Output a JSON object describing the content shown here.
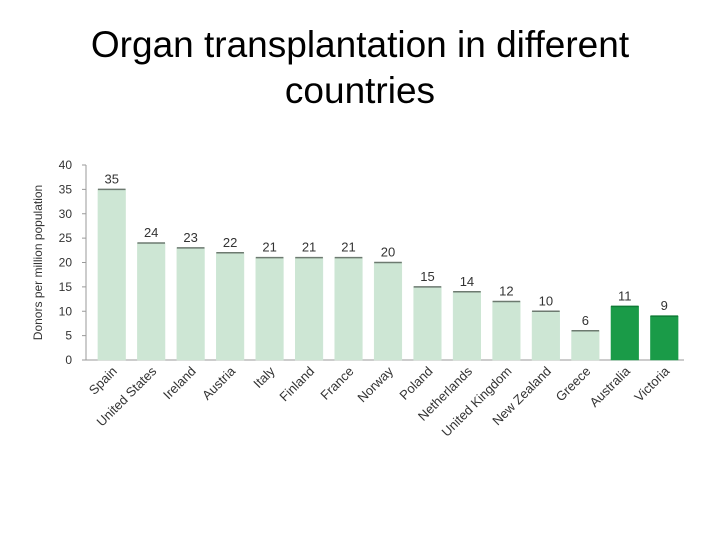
{
  "title_lines": [
    "Organ transplantation in different",
    "countries"
  ],
  "colors": {
    "light_bar": "#cde6d4",
    "dark_bar": "#1a9b48",
    "outline": "#6d7a70",
    "axis": "#9a9a9a"
  },
  "chart_data": {
    "type": "bar",
    "title": "Organ transplantation in different countries",
    "xlabel": "",
    "ylabel": "Donors per million population",
    "ylim": [
      0,
      40
    ],
    "yticks": [
      0,
      5,
      10,
      15,
      20,
      25,
      30,
      35,
      40
    ],
    "grid": false,
    "categories": [
      "Spain",
      "United States",
      "Ireland",
      "Austria",
      "Italy",
      "Finland",
      "France",
      "Norway",
      "Poland",
      "Netherlands",
      "United Kingdom",
      "New Zealand",
      "Greece",
      "Australia",
      "Victoria"
    ],
    "values": [
      35,
      24,
      23,
      22,
      21,
      21,
      21,
      20,
      15,
      14,
      12,
      10,
      6,
      11,
      9
    ],
    "data_labels": [
      "35",
      "24",
      "23",
      "22",
      "21",
      "21",
      "21",
      "20",
      "15",
      "14",
      "12",
      "10",
      "6",
      "11",
      "9"
    ],
    "highlighted": [
      false,
      false,
      false,
      false,
      false,
      false,
      false,
      false,
      false,
      false,
      false,
      false,
      false,
      true,
      true
    ]
  }
}
